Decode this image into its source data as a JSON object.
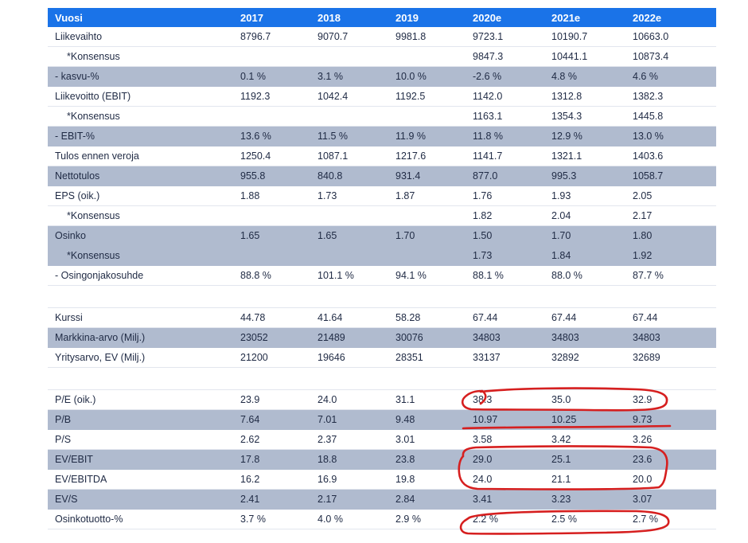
{
  "headers": [
    "Vuosi",
    "2017",
    "2018",
    "2019",
    "2020e",
    "2021e",
    "2022e"
  ],
  "rows": [
    {
      "label": "Liikevaihto",
      "values": [
        "8796.7",
        "9070.7",
        "9981.8",
        "9723.1",
        "10190.7",
        "10663.0"
      ],
      "shaded": false,
      "indent": false
    },
    {
      "label": "*Konsensus",
      "values": [
        "",
        "",
        "",
        "9847.3",
        "10441.1",
        "10873.4"
      ],
      "shaded": false,
      "indent": true
    },
    {
      "label": "- kasvu-%",
      "values": [
        "0.1 %",
        "3.1 %",
        "10.0 %",
        "-2.6 %",
        "4.8 %",
        "4.6 %"
      ],
      "shaded": true,
      "indent": false
    },
    {
      "label": "Liikevoitto (EBIT)",
      "values": [
        "1192.3",
        "1042.4",
        "1192.5",
        "1142.0",
        "1312.8",
        "1382.3"
      ],
      "shaded": false,
      "indent": false
    },
    {
      "label": "*Konsensus",
      "values": [
        "",
        "",
        "",
        "1163.1",
        "1354.3",
        "1445.8"
      ],
      "shaded": false,
      "indent": true
    },
    {
      "label": "- EBIT-%",
      "values": [
        "13.6 %",
        "11.5 %",
        "11.9 %",
        "11.8 %",
        "12.9 %",
        "13.0 %"
      ],
      "shaded": true,
      "indent": false
    },
    {
      "label": "Tulos ennen veroja",
      "values": [
        "1250.4",
        "1087.1",
        "1217.6",
        "1141.7",
        "1321.1",
        "1403.6"
      ],
      "shaded": false,
      "indent": false
    },
    {
      "label": "Nettotulos",
      "values": [
        "955.8",
        "840.8",
        "931.4",
        "877.0",
        "995.3",
        "1058.7"
      ],
      "shaded": true,
      "indent": false
    },
    {
      "label": "EPS (oik.)",
      "values": [
        "1.88",
        "1.73",
        "1.87",
        "1.76",
        "1.93",
        "2.05"
      ],
      "shaded": false,
      "indent": false
    },
    {
      "label": "*Konsensus",
      "values": [
        "",
        "",
        "",
        "1.82",
        "2.04",
        "2.17"
      ],
      "shaded": false,
      "indent": true
    },
    {
      "label": "Osinko",
      "values": [
        "1.65",
        "1.65",
        "1.70",
        "1.50",
        "1.70",
        "1.80"
      ],
      "shaded": true,
      "indent": false
    },
    {
      "label": "*Konsensus",
      "values": [
        "",
        "",
        "",
        "1.73",
        "1.84",
        "1.92"
      ],
      "shaded": true,
      "indent": true
    },
    {
      "label": "- Osingonjakosuhde",
      "values": [
        "88.8 %",
        "101.1 %",
        "94.1 %",
        "88.1 %",
        "88.0 %",
        "87.7 %"
      ],
      "shaded": false,
      "indent": false
    },
    {
      "spacer": true
    },
    {
      "label": "Kurssi",
      "values": [
        "44.78",
        "41.64",
        "58.28",
        "67.44",
        "67.44",
        "67.44"
      ],
      "shaded": false,
      "indent": false
    },
    {
      "label": "Markkina-arvo (Milj.)",
      "values": [
        "23052",
        "21489",
        "30076",
        "34803",
        "34803",
        "34803"
      ],
      "shaded": true,
      "indent": false
    },
    {
      "label": "Yritysarvo, EV (Milj.)",
      "values": [
        "21200",
        "19646",
        "28351",
        "33137",
        "32892",
        "32689"
      ],
      "shaded": false,
      "indent": false
    },
    {
      "spacer": true
    },
    {
      "label": "P/E (oik.)",
      "values": [
        "23.9",
        "24.0",
        "31.1",
        "38.3",
        "35.0",
        "32.9"
      ],
      "shaded": false,
      "indent": false
    },
    {
      "label": "P/B",
      "values": [
        "7.64",
        "7.01",
        "9.48",
        "10.97",
        "10.25",
        "9.73"
      ],
      "shaded": true,
      "indent": false
    },
    {
      "label": "P/S",
      "values": [
        "2.62",
        "2.37",
        "3.01",
        "3.58",
        "3.42",
        "3.26"
      ],
      "shaded": false,
      "indent": false
    },
    {
      "label": "EV/EBIT",
      "values": [
        "17.8",
        "18.8",
        "23.8",
        "29.0",
        "25.1",
        "23.6"
      ],
      "shaded": true,
      "indent": false
    },
    {
      "label": "EV/EBITDA",
      "values": [
        "16.2",
        "16.9",
        "19.8",
        "24.0",
        "21.1",
        "20.0"
      ],
      "shaded": false,
      "indent": false
    },
    {
      "label": "EV/S",
      "values": [
        "2.41",
        "2.17",
        "2.84",
        "3.41",
        "3.23",
        "3.07"
      ],
      "shaded": true,
      "indent": false
    },
    {
      "label": "Osinkotuotto-%",
      "values": [
        "3.7 %",
        "4.0 %",
        "2.9 %",
        "2.2 %",
        "2.5 %",
        "2.7 %"
      ],
      "shaded": false,
      "indent": false
    }
  ],
  "annotation_color": "#d61f1f"
}
